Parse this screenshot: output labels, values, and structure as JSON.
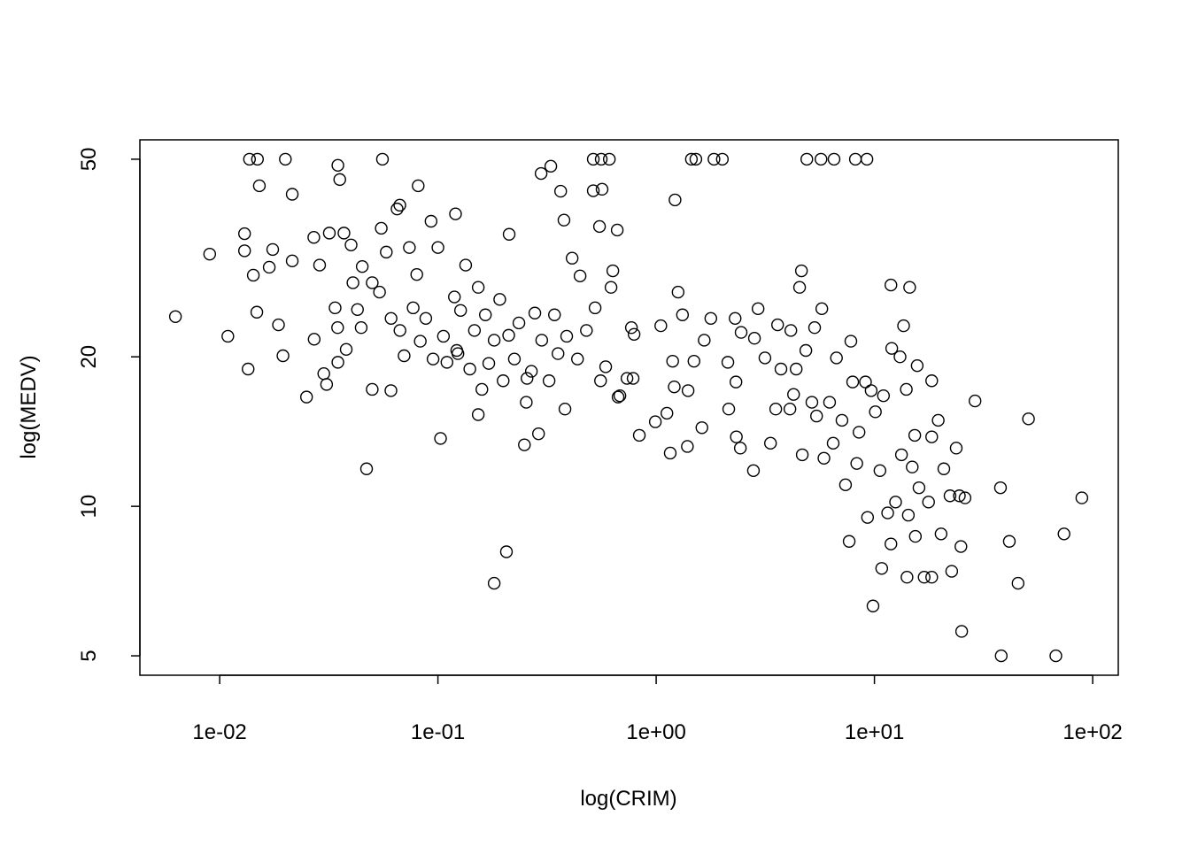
{
  "chart_data": {
    "type": "scatter",
    "title": "",
    "xlabel": "log(CRIM)",
    "ylabel": "log(MEDV)",
    "x_scale": "log",
    "y_scale": "log",
    "xlim": [
      0.00431,
      131
    ],
    "ylim": [
      4.57,
      54.7
    ],
    "grid": false,
    "legend": "none",
    "marker": "open-circle",
    "color": "#000000",
    "x_ticks": [
      {
        "value": 0.01,
        "label": "1e-02"
      },
      {
        "value": 0.1,
        "label": "1e-01"
      },
      {
        "value": 1,
        "label": "1e+00"
      },
      {
        "value": 10,
        "label": "1e+01"
      },
      {
        "value": 100,
        "label": "1e+02"
      }
    ],
    "y_ticks": [
      {
        "value": 5,
        "label": "5"
      },
      {
        "value": 10,
        "label": "10"
      },
      {
        "value": 20,
        "label": "20"
      },
      {
        "value": 50,
        "label": "50"
      }
    ],
    "points": [
      [
        0.0137,
        50
      ],
      [
        0.0149,
        50
      ],
      [
        0.02,
        50
      ],
      [
        0.0557,
        50
      ],
      [
        0.515,
        50
      ],
      [
        0.56,
        50
      ],
      [
        0.61,
        50
      ],
      [
        1.45,
        50
      ],
      [
        1.52,
        50
      ],
      [
        1.84,
        50
      ],
      [
        2.01,
        50
      ],
      [
        4.9,
        50
      ],
      [
        5.69,
        50
      ],
      [
        6.53,
        50
      ],
      [
        8.18,
        50
      ],
      [
        9.24,
        50
      ],
      [
        0.00627,
        24.1
      ],
      [
        0.009,
        32.2
      ],
      [
        0.0109,
        22.0
      ],
      [
        0.013,
        35.4
      ],
      [
        0.013,
        32.7
      ],
      [
        0.0135,
        18.9
      ],
      [
        0.01426,
        29.2
      ],
      [
        0.0148,
        24.6
      ],
      [
        0.0152,
        44.2
      ],
      [
        0.01687,
        30.3
      ],
      [
        0.0175,
        32.9
      ],
      [
        0.0186,
        23.2
      ],
      [
        0.0195,
        20.1
      ],
      [
        0.0215,
        42.5
      ],
      [
        0.025,
        16.6
      ],
      [
        0.027,
        34.8
      ],
      [
        0.0271,
        21.7
      ],
      [
        0.03,
        18.5
      ],
      [
        0.0309,
        17.6
      ],
      [
        0.0348,
        48.6
      ],
      [
        0.0355,
        45.5
      ],
      [
        0.0471,
        11.9
      ],
      [
        0.05,
        17.2
      ],
      [
        0.0609,
        17.1
      ],
      [
        0.0669,
        40.4
      ],
      [
        0.0812,
        44.2
      ],
      [
        0.1028,
        13.7
      ],
      [
        0.1204,
        38.8
      ],
      [
        0.1235,
        20.3
      ],
      [
        0.153,
        15.3
      ],
      [
        0.181,
        7.0
      ],
      [
        0.206,
        8.1
      ],
      [
        0.212,
        35.3
      ],
      [
        0.249,
        13.3
      ],
      [
        0.256,
        18.1
      ],
      [
        0.289,
        14.0
      ],
      [
        0.297,
        46.8
      ],
      [
        0.329,
        48.4
      ],
      [
        0.365,
        43.1
      ],
      [
        0.378,
        37.7
      ],
      [
        0.382,
        15.7
      ],
      [
        0.412,
        31.6
      ],
      [
        0.448,
        29.1
      ],
      [
        0.515,
        43.2
      ],
      [
        0.55,
        36.6
      ],
      [
        0.565,
        43.5
      ],
      [
        0.621,
        27.6
      ],
      [
        0.663,
        36.0
      ],
      [
        0.669,
        16.6
      ],
      [
        0.77,
        22.9
      ],
      [
        0.784,
        18.1
      ],
      [
        0.837,
        13.9
      ],
      [
        0.991,
        14.8
      ],
      [
        1.05,
        23.1
      ],
      [
        1.12,
        15.4
      ],
      [
        1.16,
        12.8
      ],
      [
        1.19,
        19.6
      ],
      [
        1.21,
        17.4
      ],
      [
        1.22,
        41.4
      ],
      [
        1.26,
        27.0
      ],
      [
        1.32,
        24.3
      ],
      [
        1.4,
        17.1
      ],
      [
        1.39,
        13.2
      ],
      [
        1.49,
        19.6
      ],
      [
        1.62,
        14.4
      ],
      [
        1.66,
        21.6
      ],
      [
        1.78,
        23.9
      ],
      [
        2.13,
        19.5
      ],
      [
        2.15,
        15.7
      ],
      [
        2.32,
        17.8
      ],
      [
        2.33,
        13.8
      ],
      [
        2.43,
        13.1
      ],
      [
        2.3,
        23.9
      ],
      [
        2.45,
        22.4
      ],
      [
        2.79,
        11.8
      ],
      [
        2.82,
        21.8
      ],
      [
        2.93,
        25.0
      ],
      [
        3.15,
        19.9
      ],
      [
        3.34,
        13.4
      ],
      [
        3.53,
        15.7
      ],
      [
        3.6,
        23.2
      ],
      [
        3.73,
        18.9
      ],
      [
        4.1,
        15.7
      ],
      [
        4.14,
        22.6
      ],
      [
        4.26,
        16.8
      ],
      [
        4.38,
        18.9
      ],
      [
        4.54,
        27.6
      ],
      [
        4.63,
        29.8
      ],
      [
        4.67,
        12.7
      ],
      [
        4.85,
        20.6
      ],
      [
        5.17,
        16.2
      ],
      [
        5.32,
        22.9
      ],
      [
        5.43,
        15.2
      ],
      [
        5.74,
        25.0
      ],
      [
        5.87,
        12.5
      ],
      [
        6.23,
        16.2
      ],
      [
        6.47,
        13.4
      ],
      [
        6.7,
        19.9
      ],
      [
        7.1,
        14.9
      ],
      [
        7.37,
        11.05
      ],
      [
        7.66,
        8.5
      ],
      [
        7.8,
        21.5
      ],
      [
        7.95,
        17.8
      ],
      [
        8.3,
        12.2
      ],
      [
        8.5,
        14.1
      ],
      [
        9.1,
        17.8
      ],
      [
        9.3,
        9.5
      ],
      [
        9.66,
        17.1
      ],
      [
        9.85,
        6.3
      ],
      [
        10.1,
        15.5
      ],
      [
        10.6,
        11.8
      ],
      [
        10.8,
        7.5
      ],
      [
        11.0,
        16.7
      ],
      [
        11.5,
        9.7
      ],
      [
        11.9,
        27.9
      ],
      [
        11.9,
        8.4
      ],
      [
        12.0,
        20.8
      ],
      [
        12.5,
        10.2
      ],
      [
        13.1,
        20.0
      ],
      [
        13.3,
        12.7
      ],
      [
        13.6,
        23.1
      ],
      [
        14.0,
        17.2
      ],
      [
        14.1,
        7.2
      ],
      [
        14.3,
        9.6
      ],
      [
        14.5,
        27.6
      ],
      [
        14.9,
        12.0
      ],
      [
        15.3,
        13.9
      ],
      [
        15.4,
        8.7
      ],
      [
        15.7,
        19.2
      ],
      [
        16.0,
        10.9
      ],
      [
        16.9,
        7.2
      ],
      [
        17.7,
        10.2
      ],
      [
        18.3,
        7.2
      ],
      [
        18.3,
        17.9
      ],
      [
        18.3,
        13.8
      ],
      [
        19.6,
        14.9
      ],
      [
        20.2,
        8.8
      ],
      [
        20.8,
        11.9
      ],
      [
        22.2,
        10.5
      ],
      [
        22.6,
        7.4
      ],
      [
        23.7,
        13.1
      ],
      [
        24.5,
        10.5
      ],
      [
        24.9,
        8.3
      ],
      [
        25.1,
        5.6
      ],
      [
        26.0,
        10.4
      ],
      [
        28.9,
        16.3
      ],
      [
        37.8,
        10.9
      ],
      [
        38.1,
        5.0
      ],
      [
        41.5,
        8.5
      ],
      [
        45.5,
        7.0
      ],
      [
        50.8,
        15.0
      ],
      [
        67.8,
        5.0
      ],
      [
        73.9,
        8.8
      ],
      [
        89.2,
        10.4
      ],
      [
        0.0287,
        30.6
      ],
      [
        0.0318,
        35.5
      ],
      [
        0.0371,
        35.5
      ],
      [
        0.04,
        33.6
      ],
      [
        0.0408,
        28.2
      ],
      [
        0.0338,
        25.1
      ],
      [
        0.0347,
        22.9
      ],
      [
        0.0348,
        19.5
      ],
      [
        0.038,
        20.7
      ],
      [
        0.0428,
        24.9
      ],
      [
        0.0445,
        22.9
      ],
      [
        0.045,
        30.4
      ],
      [
        0.05,
        28.2
      ],
      [
        0.054,
        27.0
      ],
      [
        0.055,
        36.3
      ],
      [
        0.058,
        32.5
      ],
      [
        0.061,
        23.9
      ],
      [
        0.065,
        39.7
      ],
      [
        0.067,
        22.6
      ],
      [
        0.07,
        20.1
      ],
      [
        0.074,
        33.2
      ],
      [
        0.077,
        25.1
      ],
      [
        0.08,
        29.3
      ],
      [
        0.083,
        21.5
      ],
      [
        0.088,
        23.9
      ],
      [
        0.093,
        37.5
      ],
      [
        0.095,
        19.8
      ],
      [
        0.1,
        33.2
      ],
      [
        0.106,
        22.0
      ],
      [
        0.11,
        19.5
      ],
      [
        0.119,
        26.4
      ],
      [
        0.122,
        20.6
      ],
      [
        0.127,
        24.8
      ],
      [
        0.134,
        30.6
      ],
      [
        0.14,
        18.9
      ],
      [
        0.147,
        22.6
      ],
      [
        0.153,
        27.6
      ],
      [
        0.159,
        17.2
      ],
      [
        0.165,
        24.3
      ],
      [
        0.171,
        19.4
      ],
      [
        0.181,
        21.6
      ],
      [
        0.192,
        26.1
      ],
      [
        0.199,
        17.9
      ],
      [
        0.211,
        22.1
      ],
      [
        0.224,
        19.8
      ],
      [
        0.235,
        23.4
      ],
      [
        0.254,
        16.2
      ],
      [
        0.268,
        18.7
      ],
      [
        0.278,
        24.5
      ],
      [
        0.299,
        21.6
      ],
      [
        0.323,
        17.9
      ],
      [
        0.342,
        24.3
      ],
      [
        0.355,
        20.3
      ],
      [
        0.389,
        22.0
      ],
      [
        0.436,
        19.8
      ],
      [
        0.479,
        22.6
      ],
      [
        0.525,
        25.1
      ],
      [
        0.556,
        17.9
      ],
      [
        0.587,
        19.1
      ],
      [
        0.633,
        29.8
      ],
      [
        0.682,
        16.7
      ],
      [
        0.735,
        18.1
      ],
      [
        0.792,
        22.2
      ],
      [
        0.0215,
        31.2
      ]
    ]
  }
}
